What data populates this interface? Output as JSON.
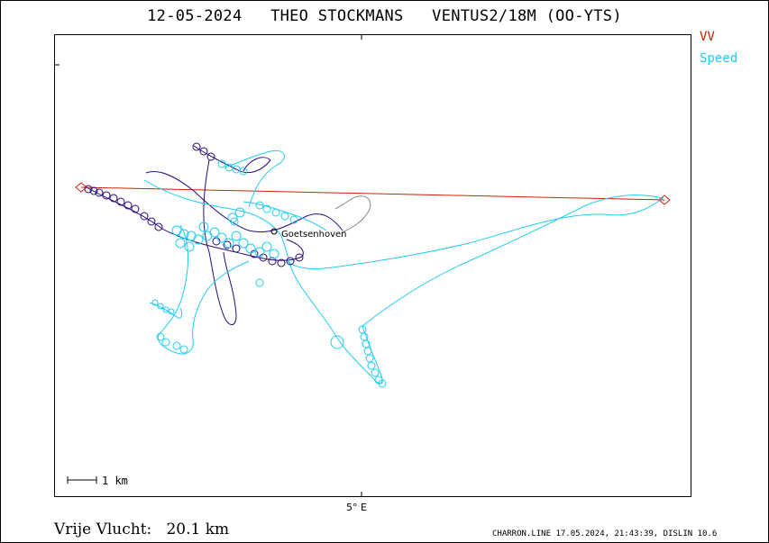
{
  "title": "12-05-2024   THEO STOCKMANS   VENTUS2/18M (OO-YTS)",
  "legend": {
    "vv": {
      "label": "VV",
      "color": "#cc2200"
    },
    "speed": {
      "label": "Speed",
      "color": "#22ccee"
    }
  },
  "track_colors": {
    "fast": "#22ccee",
    "slow": "#2a0a7a",
    "task": "#cc2200",
    "gray": "#888888"
  },
  "axis": {
    "x_tick_label": "5° E"
  },
  "scale_bar": {
    "label": "1  km"
  },
  "place": {
    "name": "Goetsenhoven",
    "icon": "circle-marker-icon"
  },
  "footer": {
    "distance": "Vrije Vlucht:   20.1 km",
    "credit": "CHARRON.LINE 17.05.2024, 21:43:39, DISLIN 10.6"
  }
}
